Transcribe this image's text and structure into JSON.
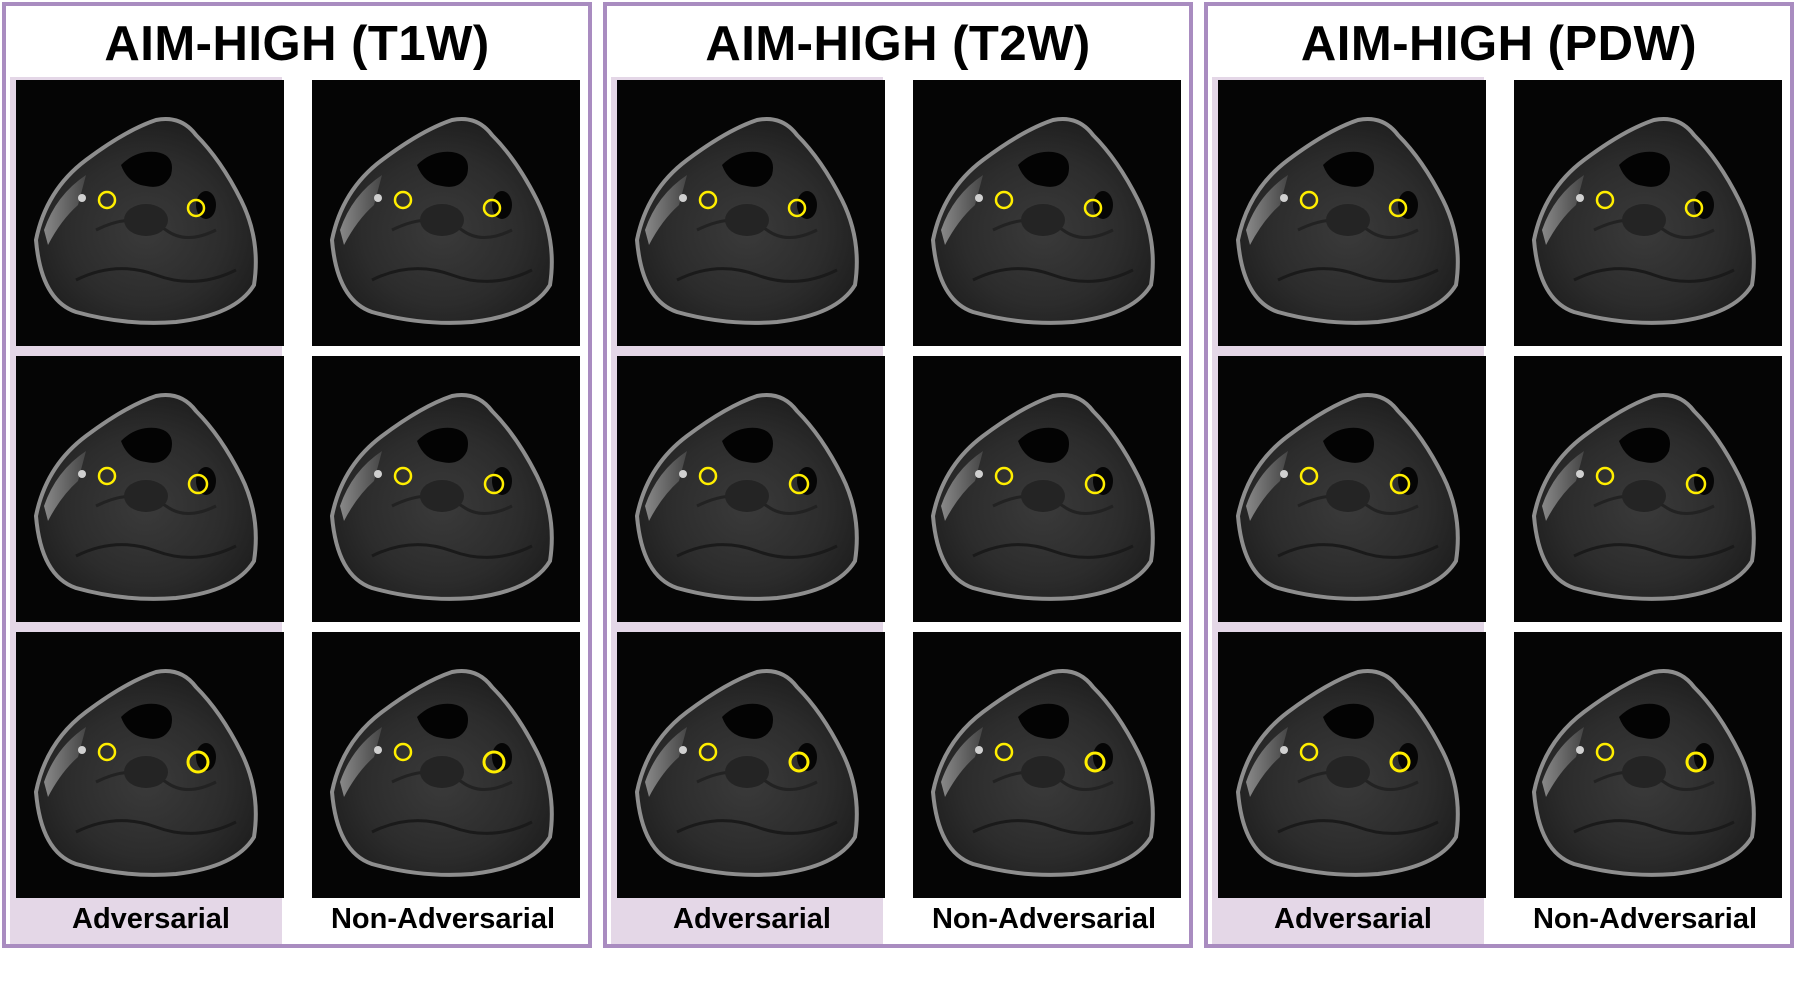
{
  "panels": [
    {
      "title": "AIM-HIGH (T1W)"
    },
    {
      "title": "AIM-HIGH (T2W)"
    },
    {
      "title": "AIM-HIGH (PDW)"
    }
  ],
  "column_labels": {
    "adversarial": "Adversarial",
    "non_adversarial": "Non-Adversarial"
  },
  "colors": {
    "panel_border": "#a98cc0",
    "adversarial_background": "#e4d7e7",
    "contour": "#ffee00"
  },
  "image_content": "axial MRI slice of neck with vessel wall contours"
}
